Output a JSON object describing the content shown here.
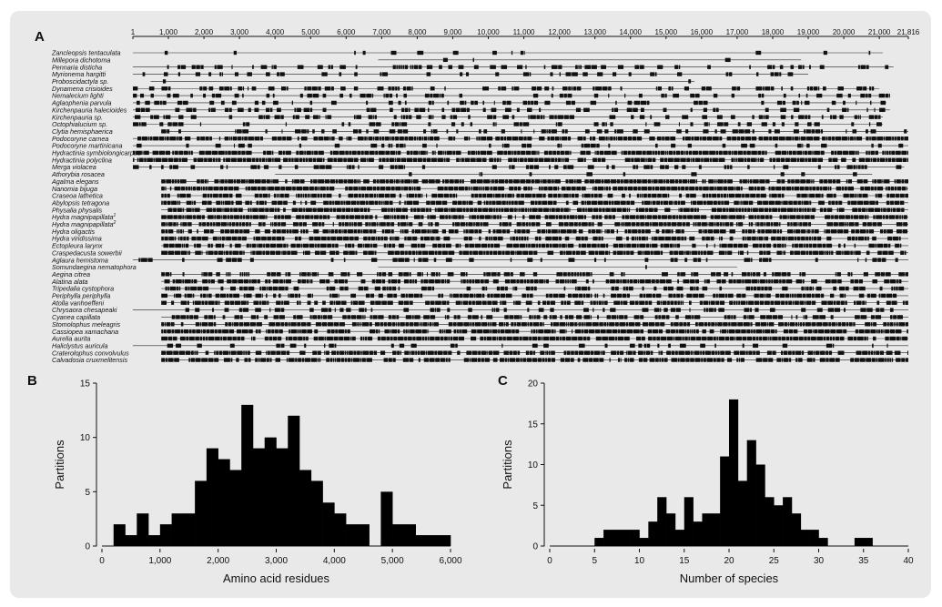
{
  "panels": {
    "A": "A",
    "B": "B",
    "C": "C"
  },
  "chart_data": [
    {
      "panel": "A",
      "type": "alignment",
      "title": "",
      "xlim": [
        1,
        21816
      ],
      "ticks": [
        "1",
        "1,000",
        "2,000",
        "3,000",
        "4,000",
        "5,000",
        "6,000",
        "7,000",
        "8,000",
        "9,000",
        "10,000",
        "11,000",
        "12,000",
        "13,000",
        "14,000",
        "15,000",
        "16,000",
        "17,000",
        "18,000",
        "19,000",
        "20,000",
        "21,000",
        "21,816"
      ],
      "tick_values": [
        1,
        1000,
        2000,
        3000,
        4000,
        5000,
        6000,
        7000,
        8000,
        9000,
        10000,
        11000,
        12000,
        13000,
        14000,
        15000,
        16000,
        17000,
        18000,
        19000,
        20000,
        21000,
        21816
      ],
      "taxa": [
        {
          "name": "Zancleopsis tentaculata",
          "sup": "",
          "start": 1,
          "end": 21100,
          "density": 0.1
        },
        {
          "name": "Millepora dichotoma",
          "sup": "",
          "start": 6900,
          "end": 18800,
          "density": 0.05
        },
        {
          "name": "Pennaria disticha",
          "sup": "",
          "start": 1,
          "end": 21400,
          "density": 0.35
        },
        {
          "name": "Myrionema hargitti",
          "sup": "",
          "start": 1,
          "end": 19000,
          "density": 0.25
        },
        {
          "name": "Proboscidactyla sp.",
          "sup": "",
          "start": 500,
          "end": 15800,
          "density": 0.04
        },
        {
          "name": "Dynamena crisioides",
          "sup": "",
          "start": 1,
          "end": 21000,
          "density": 0.4
        },
        {
          "name": "Nemalecium lighti",
          "sup": "",
          "start": 1,
          "end": 21300,
          "density": 0.3
        },
        {
          "name": "Aglaophenia parvula",
          "sup": "",
          "start": 1,
          "end": 21200,
          "density": 0.4
        },
        {
          "name": "Kirchenpauria halecioides",
          "sup": "",
          "start": 1,
          "end": 21300,
          "density": 0.35
        },
        {
          "name": "Kirchenpauria sp.",
          "sup": "",
          "start": 1,
          "end": 21100,
          "density": 0.4
        },
        {
          "name": "Octophialucium sp.",
          "sup": "",
          "start": 1,
          "end": 21100,
          "density": 0.3
        },
        {
          "name": "Clytia hemisphaerica",
          "sup": "",
          "start": 800,
          "end": 21816,
          "density": 0.35
        },
        {
          "name": "Podocoryne carnea",
          "sup": "",
          "start": 1,
          "end": 21816,
          "density": 0.8
        },
        {
          "name": "Podocoryne martinicana",
          "sup": "",
          "start": 1,
          "end": 21816,
          "density": 0.2
        },
        {
          "name": "Hydractinia symbiolongicarpus",
          "sup": "",
          "start": 1,
          "end": 21816,
          "density": 0.85
        },
        {
          "name": "Hydractinia polyclina",
          "sup": "",
          "start": 1,
          "end": 21816,
          "density": 0.85
        },
        {
          "name": "Merga violacea",
          "sup": "",
          "start": 1,
          "end": 21700,
          "density": 0.3
        },
        {
          "name": "Athorybia rosacea",
          "sup": "",
          "start": 4000,
          "end": 20800,
          "density": 0.06
        },
        {
          "name": "Agalma elegans",
          "sup": "",
          "start": 800,
          "end": 21816,
          "density": 0.85
        },
        {
          "name": "Nanomia bijuga",
          "sup": "",
          "start": 800,
          "end": 21816,
          "density": 0.85
        },
        {
          "name": "Craseoa lathetica",
          "sup": "",
          "start": 800,
          "end": 21816,
          "density": 0.8
        },
        {
          "name": "Abylopsis tetragona",
          "sup": "",
          "start": 800,
          "end": 21816,
          "density": 0.8
        },
        {
          "name": "Physalia physalis",
          "sup": "",
          "start": 800,
          "end": 21816,
          "density": 0.8
        },
        {
          "name": "Hydra magnipapillata",
          "sup": "1",
          "start": 800,
          "end": 21816,
          "density": 0.85
        },
        {
          "name": "Hydra magnipapillata",
          "sup": "2",
          "start": 800,
          "end": 21816,
          "density": 0.85
        },
        {
          "name": "Hydra oligactis",
          "sup": "",
          "start": 800,
          "end": 21816,
          "density": 0.8
        },
        {
          "name": "Hydra viridissima",
          "sup": "",
          "start": 800,
          "end": 21816,
          "density": 0.8
        },
        {
          "name": "Ectopleura larynx",
          "sup": "",
          "start": 800,
          "end": 21816,
          "density": 0.8
        },
        {
          "name": "Craspedacusta sowerbii",
          "sup": "",
          "start": 800,
          "end": 21816,
          "density": 0.85
        },
        {
          "name": "Aglaura hemistoma",
          "sup": "",
          "start": 1,
          "end": 21816,
          "density": 0.3
        },
        {
          "name": "Somundaegina nematophora",
          "sup": "",
          "start": 6900,
          "end": 17000,
          "density": 0.04
        },
        {
          "name": "Aegina citrea",
          "sup": "",
          "start": 800,
          "end": 21816,
          "density": 0.5
        },
        {
          "name": "Alatina alata",
          "sup": "",
          "start": 800,
          "end": 21816,
          "density": 0.75
        },
        {
          "name": "Tripedalia cystophora",
          "sup": "",
          "start": 800,
          "end": 21816,
          "density": 0.5
        },
        {
          "name": "Periphylla periphylla",
          "sup": "",
          "start": 800,
          "end": 21816,
          "density": 0.7
        },
        {
          "name": "Atolla vanhoeffeni",
          "sup": "",
          "start": 800,
          "end": 21816,
          "density": 0.75
        },
        {
          "name": "Chrysaora chesapeaki",
          "sup": "",
          "start": 1,
          "end": 21816,
          "density": 0.35
        },
        {
          "name": "Cyanea capillata",
          "sup": "",
          "start": 800,
          "end": 21816,
          "density": 0.5
        },
        {
          "name": "Stomolophus meleagris",
          "sup": "",
          "start": 800,
          "end": 21816,
          "density": 0.85
        },
        {
          "name": "Cassiopea xamachana",
          "sup": "",
          "start": 800,
          "end": 21816,
          "density": 0.85
        },
        {
          "name": "Aurelia aurita",
          "sup": "",
          "start": 800,
          "end": 21816,
          "density": 0.85
        },
        {
          "name": "Haliclystus auricula",
          "sup": "",
          "start": 1,
          "end": 21816,
          "density": 0.2
        },
        {
          "name": "Craterolophus convolvulus",
          "sup": "",
          "start": 800,
          "end": 21816,
          "density": 0.8
        },
        {
          "name": "Calvadosia cruxmelitensis",
          "sup": "",
          "start": 800,
          "end": 21816,
          "density": 0.8
        }
      ]
    },
    {
      "panel": "B",
      "type": "bar",
      "title": "",
      "xlabel": "Amino acid residues",
      "ylabel": "Partitions",
      "xlim": [
        0,
        6000
      ],
      "ylim": [
        0,
        15
      ],
      "xticks": [
        "0",
        "1,000",
        "2,000",
        "3,000",
        "4,000",
        "5,000",
        "6,000"
      ],
      "xtick_values": [
        0,
        1000,
        2000,
        3000,
        4000,
        5000,
        6000
      ],
      "yticks": [
        "0",
        "5",
        "10",
        "15"
      ],
      "ytick_values": [
        0,
        5,
        10,
        15
      ],
      "bin_width": 200,
      "bin_starts": [
        200,
        400,
        600,
        800,
        1000,
        1200,
        1400,
        1600,
        1800,
        2000,
        2200,
        2400,
        2600,
        2800,
        3000,
        3200,
        3400,
        3600,
        3800,
        4000,
        4200,
        4400,
        4600,
        4800,
        5000,
        5200,
        5400,
        5600,
        5800
      ],
      "values": [
        2,
        1,
        3,
        1,
        2,
        3,
        3,
        6,
        9,
        8,
        7,
        13,
        9,
        10,
        9,
        12,
        7,
        6,
        4,
        3,
        2,
        2,
        0,
        5,
        2,
        2,
        1,
        1,
        1
      ]
    },
    {
      "panel": "C",
      "type": "bar",
      "title": "",
      "xlabel": "Number of species",
      "ylabel": "Partitions",
      "xlim": [
        0,
        40
      ],
      "ylim": [
        0,
        20
      ],
      "xticks": [
        "0",
        "5",
        "10",
        "15",
        "20",
        "25",
        "30",
        "35",
        "40"
      ],
      "xtick_values": [
        0,
        5,
        10,
        15,
        20,
        25,
        30,
        35,
        40
      ],
      "yticks": [
        "0",
        "5",
        "10",
        "15",
        "20"
      ],
      "ytick_values": [
        0,
        5,
        10,
        15,
        20
      ],
      "bin_width": 1,
      "bin_starts": [
        5,
        6,
        7,
        8,
        9,
        10,
        11,
        12,
        13,
        14,
        15,
        16,
        17,
        18,
        19,
        20,
        21,
        22,
        23,
        24,
        25,
        26,
        27,
        28,
        29,
        30,
        31,
        32,
        33,
        34,
        35
      ],
      "values": [
        1,
        2,
        2,
        2,
        2,
        1,
        3,
        6,
        4,
        2,
        6,
        3,
        4,
        4,
        11,
        18,
        8,
        13,
        10,
        6,
        5,
        6,
        4,
        2,
        2,
        1,
        0,
        0,
        0,
        1,
        1
      ]
    }
  ]
}
